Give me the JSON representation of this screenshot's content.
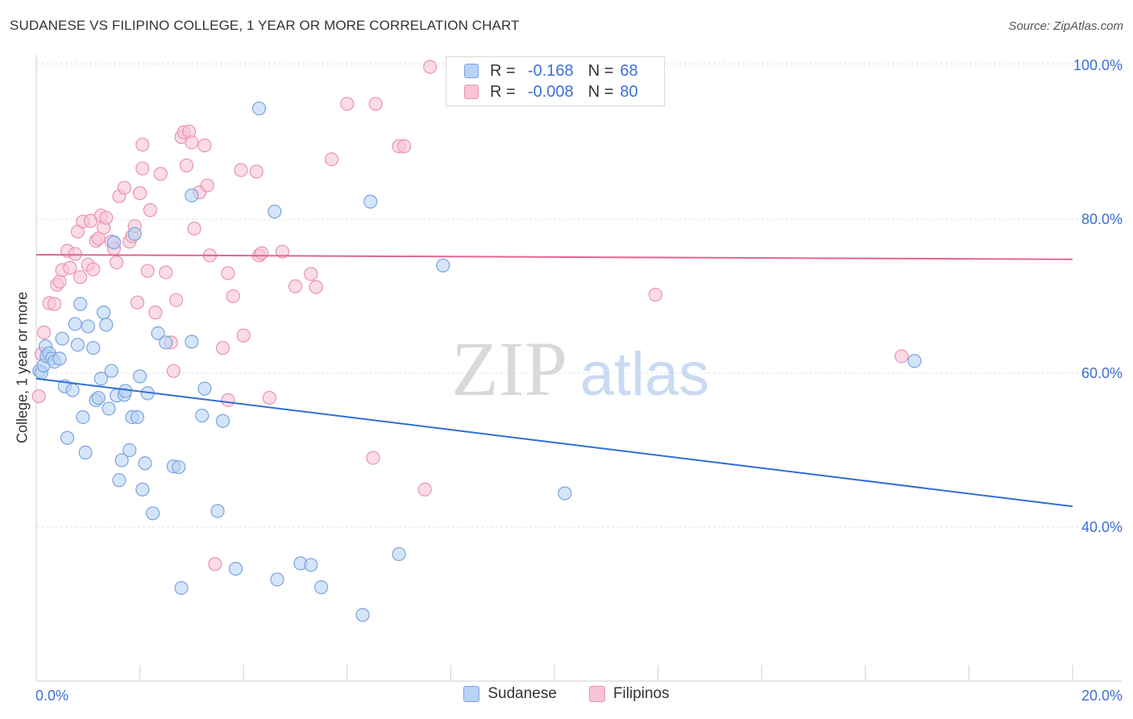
{
  "header": {
    "title": "SUDANESE VS FILIPINO COLLEGE, 1 YEAR OR MORE CORRELATION CHART",
    "source": "Source: ZipAtlas.com"
  },
  "watermark": {
    "zip": "ZIP",
    "atlas": "atlas"
  },
  "legend": {
    "r_label": "R =",
    "n_label": "N =",
    "rows": [
      {
        "name": "Sudanese",
        "r": "-0.168",
        "n": "68",
        "fill": "#b9d3f5",
        "stroke": "#7aa3e0"
      },
      {
        "name": "Filipinos",
        "r": "-0.008",
        "n": "80",
        "fill": "#f8c4d6",
        "stroke": "#e993b3"
      }
    ]
  },
  "chart_data": {
    "type": "scatter",
    "title": "SUDANESE VS FILIPINO COLLEGE, 1 YEAR OR MORE CORRELATION CHART",
    "xlabel": "",
    "ylabel": "College, 1 year or more",
    "xlim": [
      0,
      20
    ],
    "ylim": [
      20,
      102
    ],
    "x_tick_labels": [
      "0.0%",
      "20.0%"
    ],
    "y_ticks": [
      40,
      60,
      80,
      100
    ],
    "y_tick_labels": [
      "40.0%",
      "60.0%",
      "80.0%",
      "100.0%"
    ],
    "grid": true,
    "series": [
      {
        "name": "Sudanese",
        "color": "#7aa3e0",
        "fill": "#b9d3f5",
        "line_color": "#2e6fd6",
        "trend": {
          "x": [
            0,
            20
          ],
          "y": [
            59.3,
            42.7
          ]
        },
        "points": [
          [
            0.06,
            60.3
          ],
          [
            0.1,
            60.1
          ],
          [
            0.14,
            61.0
          ],
          [
            0.18,
            63.5
          ],
          [
            0.2,
            62.2
          ],
          [
            0.25,
            62.6
          ],
          [
            0.3,
            61.9
          ],
          [
            0.35,
            61.5
          ],
          [
            0.45,
            61.9
          ],
          [
            0.5,
            64.5
          ],
          [
            0.55,
            58.3
          ],
          [
            0.6,
            51.6
          ],
          [
            0.7,
            57.8
          ],
          [
            0.75,
            66.4
          ],
          [
            0.8,
            63.7
          ],
          [
            0.85,
            69.0
          ],
          [
            0.9,
            54.3
          ],
          [
            0.95,
            49.7
          ],
          [
            1.0,
            66.1
          ],
          [
            1.1,
            63.3
          ],
          [
            1.15,
            56.5
          ],
          [
            1.2,
            56.8
          ],
          [
            1.25,
            59.3
          ],
          [
            1.3,
            67.9
          ],
          [
            1.35,
            66.3
          ],
          [
            1.4,
            55.4
          ],
          [
            1.45,
            60.3
          ],
          [
            1.5,
            77.0
          ],
          [
            1.55,
            57.1
          ],
          [
            1.6,
            46.1
          ],
          [
            1.65,
            48.7
          ],
          [
            1.7,
            57.2
          ],
          [
            1.72,
            57.7
          ],
          [
            1.8,
            50.0
          ],
          [
            1.85,
            54.3
          ],
          [
            1.9,
            78.1
          ],
          [
            1.95,
            54.3
          ],
          [
            2.0,
            59.6
          ],
          [
            2.05,
            44.9
          ],
          [
            2.1,
            48.3
          ],
          [
            2.15,
            57.4
          ],
          [
            2.25,
            41.8
          ],
          [
            2.35,
            65.2
          ],
          [
            2.5,
            64.0
          ],
          [
            2.65,
            47.9
          ],
          [
            2.75,
            47.8
          ],
          [
            2.8,
            32.1
          ],
          [
            3.0,
            64.1
          ],
          [
            3.0,
            83.1
          ],
          [
            3.2,
            54.5
          ],
          [
            3.25,
            58.0
          ],
          [
            3.5,
            42.1
          ],
          [
            3.6,
            53.8
          ],
          [
            3.85,
            34.6
          ],
          [
            4.3,
            94.4
          ],
          [
            4.6,
            81.0
          ],
          [
            4.65,
            33.2
          ],
          [
            5.1,
            35.3
          ],
          [
            5.3,
            35.1
          ],
          [
            5.5,
            32.2
          ],
          [
            6.3,
            28.6
          ],
          [
            6.45,
            82.3
          ],
          [
            7.0,
            36.5
          ],
          [
            7.85,
            74.0
          ],
          [
            10.2,
            44.4
          ],
          [
            16.95,
            61.6
          ]
        ]
      },
      {
        "name": "Filipinos",
        "color": "#e993b3",
        "fill": "#f8c4d6",
        "line_color": "#e36592",
        "trend": {
          "x": [
            0,
            20
          ],
          "y": [
            75.4,
            74.8
          ]
        },
        "points": [
          [
            0.05,
            57.0
          ],
          [
            0.1,
            62.5
          ],
          [
            0.15,
            65.3
          ],
          [
            0.25,
            69.1
          ],
          [
            0.35,
            69.0
          ],
          [
            0.4,
            71.5
          ],
          [
            0.45,
            71.9
          ],
          [
            0.5,
            73.4
          ],
          [
            0.6,
            75.9
          ],
          [
            0.65,
            73.7
          ],
          [
            0.75,
            75.5
          ],
          [
            0.8,
            78.4
          ],
          [
            0.85,
            72.5
          ],
          [
            0.9,
            79.7
          ],
          [
            1.0,
            74.1
          ],
          [
            1.05,
            79.8
          ],
          [
            1.1,
            73.5
          ],
          [
            1.15,
            77.2
          ],
          [
            1.2,
            77.5
          ],
          [
            1.25,
            80.5
          ],
          [
            1.3,
            78.9
          ],
          [
            1.35,
            80.2
          ],
          [
            1.45,
            77.1
          ],
          [
            1.5,
            76.2
          ],
          [
            1.55,
            74.4
          ],
          [
            1.6,
            83.0
          ],
          [
            1.7,
            84.1
          ],
          [
            1.8,
            77.1
          ],
          [
            1.85,
            77.8
          ],
          [
            1.9,
            79.1
          ],
          [
            1.95,
            69.2
          ],
          [
            2.0,
            83.4
          ],
          [
            2.05,
            89.7
          ],
          [
            2.05,
            86.6
          ],
          [
            2.15,
            73.3
          ],
          [
            2.2,
            81.2
          ],
          [
            2.3,
            67.9
          ],
          [
            2.4,
            85.9
          ],
          [
            2.5,
            73.1
          ],
          [
            2.6,
            64.0
          ],
          [
            2.65,
            60.3
          ],
          [
            2.7,
            69.5
          ],
          [
            2.8,
            90.7
          ],
          [
            2.85,
            91.3
          ],
          [
            2.9,
            87.0
          ],
          [
            2.95,
            91.4
          ],
          [
            3.0,
            90.0
          ],
          [
            3.05,
            78.8
          ],
          [
            3.15,
            83.5
          ],
          [
            3.25,
            89.6
          ],
          [
            3.3,
            84.4
          ],
          [
            3.35,
            75.3
          ],
          [
            3.45,
            35.2
          ],
          [
            3.6,
            63.3
          ],
          [
            3.7,
            56.5
          ],
          [
            3.7,
            73.0
          ],
          [
            3.8,
            70.0
          ],
          [
            3.95,
            86.4
          ],
          [
            4.0,
            64.9
          ],
          [
            4.25,
            86.2
          ],
          [
            4.3,
            75.3
          ],
          [
            4.35,
            75.6
          ],
          [
            4.5,
            56.8
          ],
          [
            4.75,
            75.8
          ],
          [
            5.0,
            71.3
          ],
          [
            5.3,
            72.9
          ],
          [
            5.4,
            71.2
          ],
          [
            5.7,
            87.8
          ],
          [
            6.0,
            95.0
          ],
          [
            6.5,
            49.0
          ],
          [
            6.55,
            95.0
          ],
          [
            7.0,
            89.5
          ],
          [
            7.1,
            89.5
          ],
          [
            7.5,
            44.9
          ],
          [
            7.6,
            99.8
          ],
          [
            11.95,
            70.2
          ],
          [
            16.7,
            62.2
          ]
        ]
      }
    ]
  }
}
